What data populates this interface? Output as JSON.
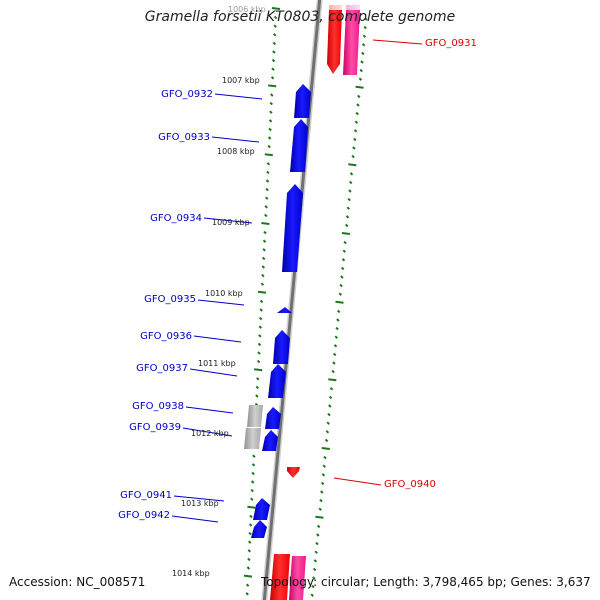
{
  "title": "Gramella forsetii KT0803, complete genome",
  "accession": "Accession: NC_008571",
  "topology": "Topology: circular; Length: 3,798,465 bp; Genes: 3,637",
  "colors": {
    "forward_gene": "#0000ee",
    "reverse_gene": "#e60000",
    "reverse_rna": "#ee1a8c",
    "pseudo_gene": "#a0a0a0",
    "backbone": "#808080",
    "tick": "#1a7a1a",
    "label_forward": "#0000cc",
    "label_reverse": "#dd0000"
  },
  "ruler_labels": [
    "1006 kbp",
    "1007 kbp",
    "1008 kbp",
    "1009 kbp",
    "1010 kbp",
    "1011 kbp",
    "1012 kbp",
    "1013 kbp",
    "1014 kbp"
  ],
  "gene_labels": [
    {
      "name": "GFO_0931",
      "strand": "reverse"
    },
    {
      "name": "GFO_0932",
      "strand": "forward"
    },
    {
      "name": "GFO_0933",
      "strand": "forward"
    },
    {
      "name": "GFO_0934",
      "strand": "forward"
    },
    {
      "name": "GFO_0935",
      "strand": "forward"
    },
    {
      "name": "GFO_0936",
      "strand": "forward"
    },
    {
      "name": "GFO_0937",
      "strand": "forward"
    },
    {
      "name": "GFO_0938",
      "strand": "forward"
    },
    {
      "name": "GFO_0939",
      "strand": "forward"
    },
    {
      "name": "GFO_0940",
      "strand": "reverse"
    },
    {
      "name": "GFO_0941",
      "strand": "forward"
    },
    {
      "name": "GFO_0942",
      "strand": "forward"
    }
  ]
}
